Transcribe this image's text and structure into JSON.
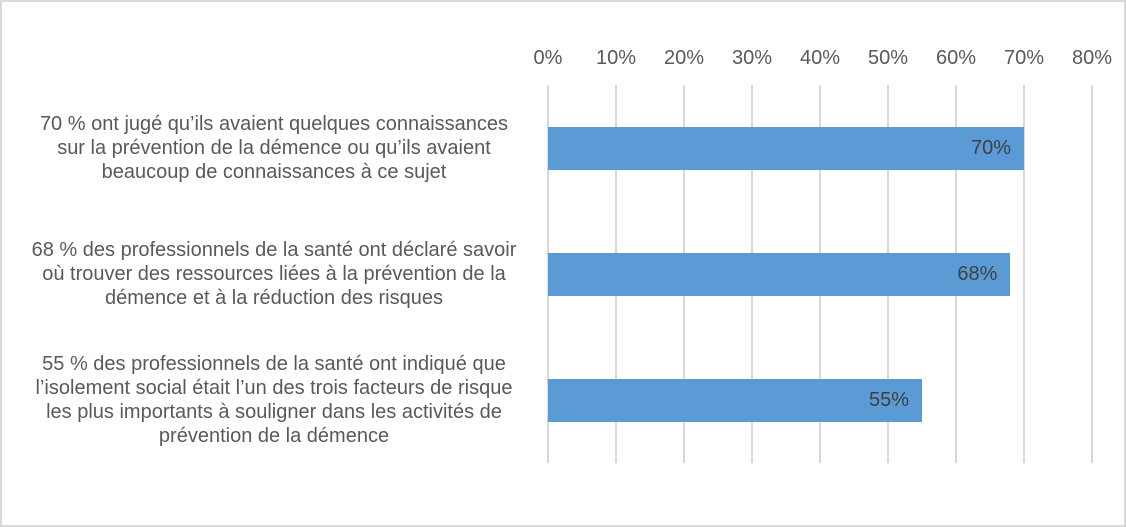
{
  "chart_data": {
    "type": "bar",
    "orientation": "horizontal",
    "title": "",
    "xlabel": "",
    "ylabel": "",
    "xlim": [
      0,
      80
    ],
    "grid": true,
    "axis_position": "top",
    "legend": false,
    "categories": [
      "70 % ont jugé qu’ils avaient quelques connaissances sur la prévention de la démence ou qu’ils avaient beaucoup de connaissances à ce sujet",
      "68 % des professionnels de la santé ont déclaré savoir où trouver des ressources liées à la prévention de la démence et à la réduction des risques",
      "55 % des professionnels de la santé ont indiqué que l’isolement social était l’un des trois facteurs de risque les plus importants à souligner dans les activités de prévention de la démence"
    ],
    "category_lines": [
      [
        "70 % ont jugé qu’ils avaient quelques connaissances",
        "sur la prévention de la démence ou qu’ils avaient",
        "beaucoup de connaissances à ce sujet"
      ],
      [
        "68 % des professionnels de la santé ont déclaré savoir",
        "où trouver des ressources liées à la prévention de la",
        "démence et à la réduction des risques"
      ],
      [
        "55 % des professionnels de la santé ont indiqué que",
        "l’isolement social était l’un des trois facteurs de risque",
        "les plus importants à souligner dans les activités de",
        "prévention de la démence"
      ]
    ],
    "values": [
      70,
      68,
      55
    ],
    "data_labels": [
      "70%",
      "68%",
      "55%"
    ],
    "x_tick_values": [
      0,
      10,
      20,
      30,
      40,
      50,
      60,
      70,
      80
    ],
    "x_tick_labels": [
      "0%",
      "10%",
      "20%",
      "30%",
      "40%",
      "50%",
      "60%",
      "70%",
      "80%"
    ],
    "colors": {
      "bar": "#5B9BD5",
      "gridline": "#D9D9D9",
      "axis_text": "#595959",
      "category_text": "#595959",
      "data_label_text": "#404040",
      "border": "#D9D9D9",
      "background": "#FFFFFF"
    }
  }
}
